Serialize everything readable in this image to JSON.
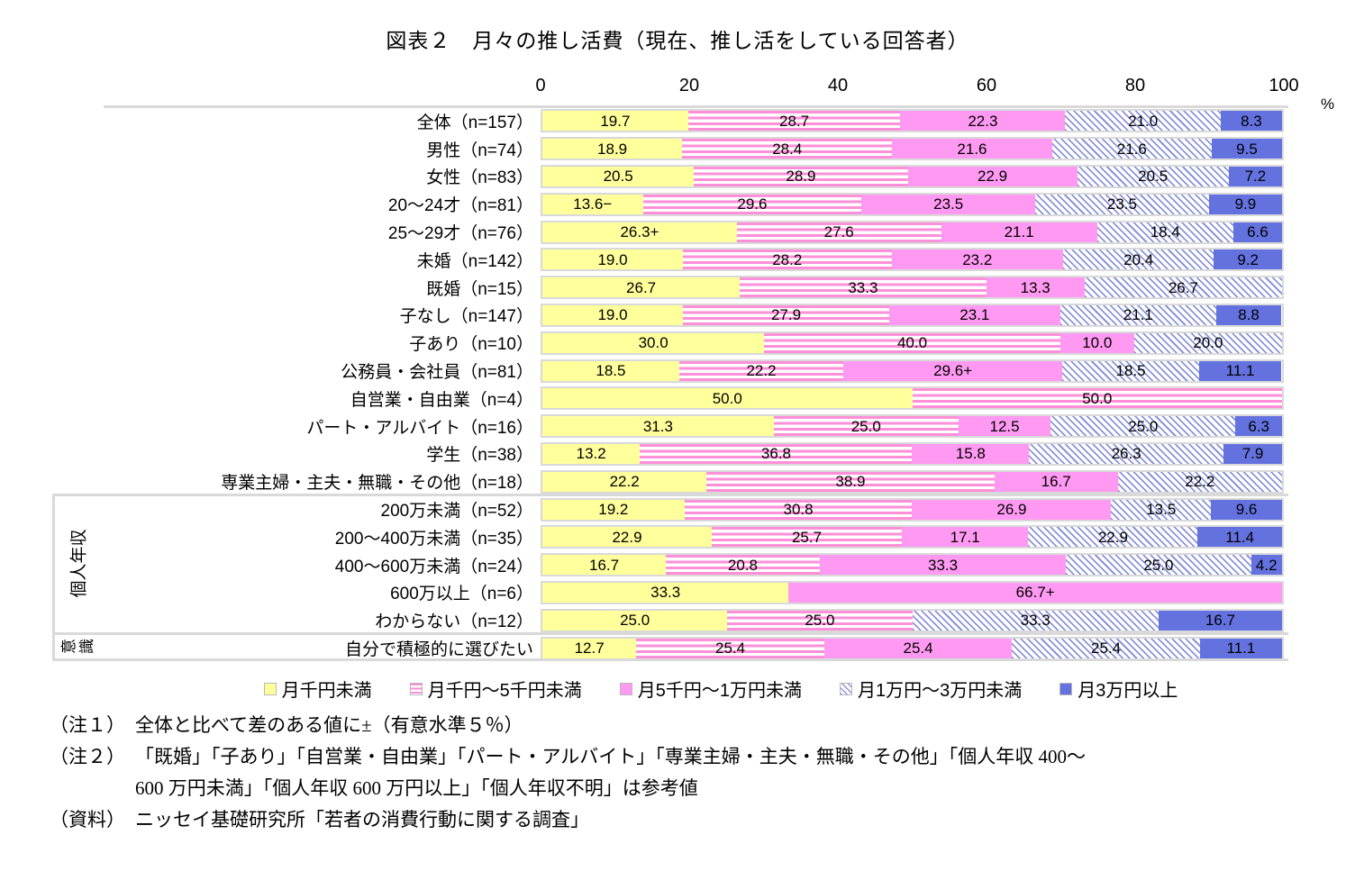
{
  "title": "図表２　月々の推し活費（現在、推し活をしている回答者）",
  "axis": {
    "ticks": [
      "0",
      "20",
      "40",
      "60",
      "80",
      "100"
    ],
    "unit": "%"
  },
  "colors": {
    "series": [
      "#FFFF9C",
      "#FF8FD8",
      "#FF99F2",
      "#8C94D8",
      "#6472E0"
    ],
    "table_line": "#D9D9D9",
    "text": "#000000"
  },
  "chart_data": {
    "type": "bar",
    "stacked": true,
    "orientation": "horizontal",
    "xlim": [
      0,
      100
    ],
    "unit": "%",
    "series_names": [
      "月千円未満",
      "月千円～5千円未満",
      "月5千円～1万円未満",
      "月1万円～3万円未満",
      "月3万円以上"
    ],
    "groups": [
      {
        "label": "個人年収",
        "row_start": 14,
        "row_end": 18
      },
      {
        "label": "意識",
        "row_start": 19,
        "row_end": 19
      }
    ],
    "rows": [
      {
        "label": "全体（n=157）",
        "values": [
          19.7,
          28.7,
          22.3,
          21.0,
          8.3
        ],
        "labels": [
          "19.7",
          "28.7",
          "22.3",
          "21.0",
          "8.3"
        ]
      },
      {
        "label": "男性（n=74）",
        "values": [
          18.9,
          28.4,
          21.6,
          21.6,
          9.5
        ],
        "labels": [
          "18.9",
          "28.4",
          "21.6",
          "21.6",
          "9.5"
        ]
      },
      {
        "label": "女性（n=83）",
        "values": [
          20.5,
          28.9,
          22.9,
          20.5,
          7.2
        ],
        "labels": [
          "20.5",
          "28.9",
          "22.9",
          "20.5",
          "7.2"
        ]
      },
      {
        "label": "20～24才（n=81）",
        "values": [
          13.6,
          29.6,
          23.5,
          23.5,
          9.9
        ],
        "labels": [
          "13.6−",
          "29.6",
          "23.5",
          "23.5",
          "9.9"
        ]
      },
      {
        "label": "25～29才（n=76）",
        "values": [
          26.3,
          27.6,
          21.1,
          18.4,
          6.6
        ],
        "labels": [
          "26.3+",
          "27.6",
          "21.1",
          "18.4",
          "6.6"
        ]
      },
      {
        "label": "未婚（n=142）",
        "values": [
          19.0,
          28.2,
          23.2,
          20.4,
          9.2
        ],
        "labels": [
          "19.0",
          "28.2",
          "23.2",
          "20.4",
          "9.2"
        ]
      },
      {
        "label": "既婚（n=15）",
        "values": [
          26.7,
          33.3,
          13.3,
          26.7,
          null
        ],
        "labels": [
          "26.7",
          "33.3",
          "13.3",
          "26.7",
          null
        ]
      },
      {
        "label": "子なし（n=147）",
        "values": [
          19.0,
          27.9,
          23.1,
          21.1,
          8.8
        ],
        "labels": [
          "19.0",
          "27.9",
          "23.1",
          "21.1",
          "8.8"
        ]
      },
      {
        "label": "子あり（n=10）",
        "values": [
          30.0,
          40.0,
          10.0,
          20.0,
          null
        ],
        "labels": [
          "30.0",
          "40.0",
          "10.0",
          "20.0",
          null
        ]
      },
      {
        "label": "公務員・会社員（n=81）",
        "values": [
          18.5,
          22.2,
          29.6,
          18.5,
          11.1
        ],
        "labels": [
          "18.5",
          "22.2",
          "29.6+",
          "18.5",
          "11.1"
        ]
      },
      {
        "label": "自営業・自由業（n=4）",
        "values": [
          50.0,
          50.0,
          null,
          null,
          null
        ],
        "labels": [
          "50.0",
          "50.0",
          null,
          null,
          null
        ]
      },
      {
        "label": "パート・アルバイト（n=16）",
        "values": [
          31.3,
          25.0,
          12.5,
          25.0,
          6.3
        ],
        "labels": [
          "31.3",
          "25.0",
          "12.5",
          "25.0",
          "6.3"
        ]
      },
      {
        "label": "学生（n=38）",
        "values": [
          13.2,
          36.8,
          15.8,
          26.3,
          7.9
        ],
        "labels": [
          "13.2",
          "36.8",
          "15.8",
          "26.3",
          "7.9"
        ]
      },
      {
        "label": "専業主婦・主夫・無職・その他（n=18）",
        "values": [
          22.2,
          38.9,
          16.7,
          22.2,
          null
        ],
        "labels": [
          "22.2",
          "38.9",
          "16.7",
          "22.2",
          null
        ]
      },
      {
        "label": "200万未満（n=52）",
        "values": [
          19.2,
          30.8,
          26.9,
          13.5,
          9.6
        ],
        "labels": [
          "19.2",
          "30.8",
          "26.9",
          "13.5",
          "9.6"
        ]
      },
      {
        "label": "200～400万未満（n=35）",
        "values": [
          22.9,
          25.7,
          17.1,
          22.9,
          11.4
        ],
        "labels": [
          "22.9",
          "25.7",
          "17.1",
          "22.9",
          "11.4"
        ]
      },
      {
        "label": "400～600万未満（n=24）",
        "values": [
          16.7,
          20.8,
          33.3,
          25.0,
          4.2
        ],
        "labels": [
          "16.7",
          "20.8",
          "33.3",
          "25.0",
          "4.2"
        ]
      },
      {
        "label": "600万以上（n=6）",
        "values": [
          33.3,
          null,
          66.7,
          null,
          null
        ],
        "labels": [
          "33.3",
          null,
          "66.7+",
          null,
          null
        ]
      },
      {
        "label": "わからない（n=12）",
        "values": [
          25.0,
          25.0,
          null,
          33.3,
          16.7
        ],
        "labels": [
          "25.0",
          "25.0",
          null,
          "33.3",
          "16.7"
        ]
      },
      {
        "label": "自分で積極的に選びたい",
        "values": [
          12.7,
          25.4,
          25.4,
          25.4,
          11.1
        ],
        "labels": [
          "12.7",
          "25.4",
          "25.4",
          "25.4",
          "11.1"
        ]
      }
    ]
  },
  "notes": [
    {
      "tag": "（注１）",
      "lines": [
        "全体と比べて差のある値に±（有意水準５％）"
      ]
    },
    {
      "tag": "（注２）",
      "lines": [
        "「既婚」「子あり」「自営業・自由業」「パート・アルバイト」「専業主婦・主夫・無職・その他」「個人年収 400～",
        "600 万円未満」「個人年収 600 万円以上」「個人年収不明」は参考値"
      ]
    },
    {
      "tag": "（資料）",
      "lines": [
        "ニッセイ基礎研究所「若者の消費行動に関する調査」"
      ]
    }
  ]
}
